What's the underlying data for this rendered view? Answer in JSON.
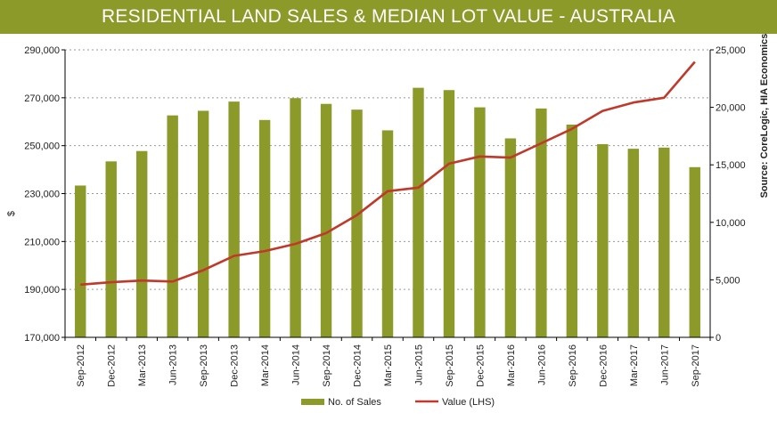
{
  "chart_data": {
    "type": "bar",
    "title": "RESIDENTIAL LAND SALES & MEDIAN LOT VALUE - AUSTRALIA",
    "categories": [
      "Sep-2012",
      "Dec-2012",
      "Mar-2013",
      "Jun-2013",
      "Sep-2013",
      "Dec-2013",
      "Mar-2014",
      "Jun-2014",
      "Sep-2014",
      "Dec-2014",
      "Mar-2015",
      "Jun-2015",
      "Sep-2015",
      "Dec-2015",
      "Mar-2016",
      "Jun-2016",
      "Sep-2016",
      "Dec-2016",
      "Mar-2017",
      "Jun-2017",
      "Sep-2017"
    ],
    "series": [
      {
        "name": "No. of Sales",
        "type": "bar",
        "axis": "right",
        "color": "#8c9a2a",
        "values": [
          13200,
          15300,
          16200,
          19300,
          19700,
          20500,
          18900,
          20800,
          20300,
          19800,
          18000,
          21700,
          21500,
          20000,
          17300,
          19900,
          18500,
          16800,
          16400,
          16500,
          14800
        ]
      },
      {
        "name": "Value (LHS)",
        "type": "line",
        "axis": "left",
        "color": "#c0392b",
        "values": [
          192000,
          193000,
          193700,
          193300,
          198000,
          204000,
          206000,
          209000,
          213500,
          221000,
          231000,
          232500,
          242500,
          245500,
          245000,
          251000,
          257000,
          264500,
          268000,
          270000,
          285000
        ]
      }
    ],
    "ylabel": "$",
    "yleft": {
      "min": 170000,
      "max": 290000,
      "ticks": [
        "170,000",
        "190,000",
        "210,000",
        "230,000",
        "250,000",
        "270,000",
        "290,000"
      ]
    },
    "yright": {
      "min": 0,
      "max": 25000,
      "ticks": [
        "0",
        "5,000",
        "10,000",
        "15,000",
        "20,000",
        "25,000"
      ]
    },
    "source": "Source: CoreLogic, HIA Economics",
    "legend": [
      "No. of Sales",
      "Value (LHS)"
    ],
    "legend_position": "bottom",
    "grid": true
  }
}
